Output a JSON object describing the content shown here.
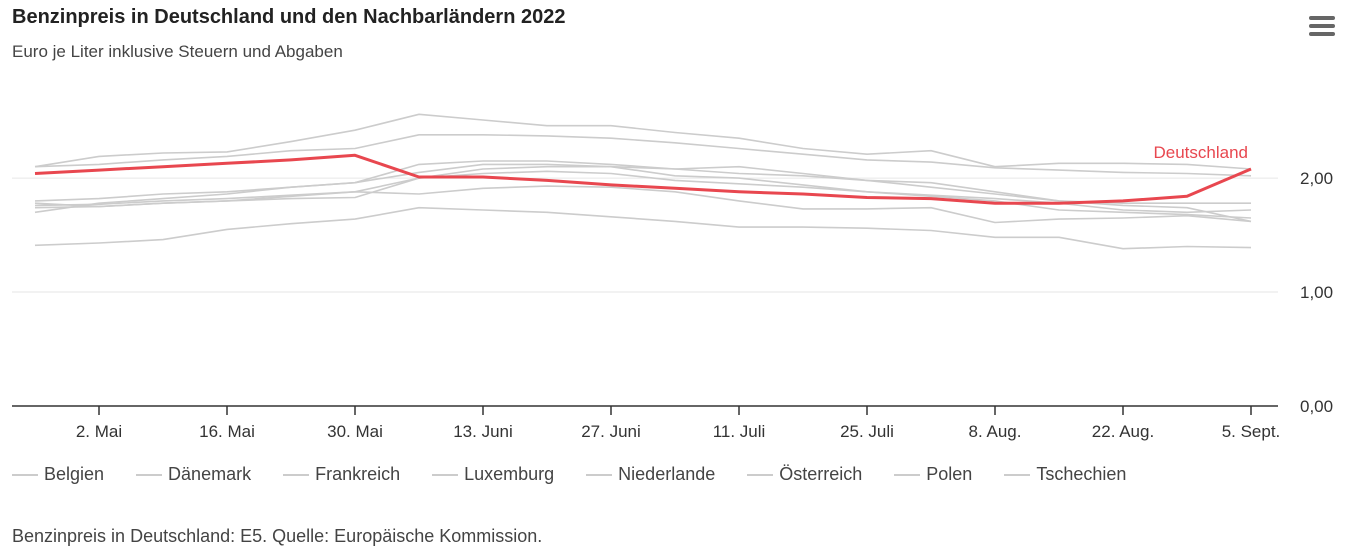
{
  "title": "Benzinpreis in Deutschland und den Nachbarländern 2022",
  "subtitle": "Euro je Liter inklusive Steuern und Abgaben",
  "footer": "Benzinpreis in Deutschland: E5. Quelle: Europäische Kommission.",
  "menu_icon": "hamburger-menu-icon",
  "colors": {
    "highlight": "#e8474f",
    "others": "#cccccc",
    "grid": "#e6e6e6",
    "axis": "#333333"
  },
  "chart_data": {
    "type": "line",
    "title": "Benzinpreis in Deutschland und den Nachbarländern 2022",
    "subtitle": "Euro je Liter inklusive Steuern und Abgaben",
    "x_tick_labels": [
      "2. Mai",
      "16. Mai",
      "30. Mai",
      "13. Juni",
      "27. Juni",
      "11. Juli",
      "25. Juli",
      "8. Aug.",
      "22. Aug.",
      "5. Sept."
    ],
    "y_tick_labels": [
      "0,00",
      "1,00",
      "2,00"
    ],
    "y_ticks": [
      0,
      1,
      2
    ],
    "ylim": [
      0,
      2.58
    ],
    "x": [
      "2022-04-25",
      "2022-05-02",
      "2022-05-09",
      "2022-05-16",
      "2022-05-23",
      "2022-05-30",
      "2022-06-06",
      "2022-06-13",
      "2022-06-20",
      "2022-06-27",
      "2022-07-04",
      "2022-07-11",
      "2022-07-18",
      "2022-07-25",
      "2022-08-01",
      "2022-08-08",
      "2022-08-15",
      "2022-08-22",
      "2022-08-29",
      "2022-09-05"
    ],
    "highlight_label": "Deutschland",
    "grid": true,
    "legend_position": "bottom-left",
    "series": [
      {
        "name": "Deutschland",
        "highlight": true,
        "values": [
          2.04,
          2.07,
          2.1,
          2.13,
          2.16,
          2.2,
          2.01,
          2.01,
          1.98,
          1.94,
          1.91,
          1.88,
          1.86,
          1.83,
          1.82,
          1.78,
          1.78,
          1.8,
          1.84,
          2.08
        ]
      },
      {
        "name": "Belgien",
        "values": [
          1.8,
          1.82,
          1.86,
          1.88,
          1.92,
          1.96,
          2.12,
          2.15,
          2.15,
          2.12,
          2.08,
          2.04,
          2.02,
          1.98,
          1.92,
          1.86,
          1.8,
          1.78,
          1.78,
          1.78
        ]
      },
      {
        "name": "Dänemark",
        "values": [
          2.1,
          2.19,
          2.22,
          2.23,
          2.32,
          2.42,
          2.56,
          2.51,
          2.46,
          2.46,
          2.4,
          2.35,
          2.26,
          2.21,
          2.24,
          2.1,
          2.13,
          2.13,
          2.12,
          2.08
        ]
      },
      {
        "name": "Frankreich",
        "values": [
          1.76,
          1.77,
          1.8,
          1.82,
          1.85,
          1.88,
          2.0,
          2.08,
          2.1,
          2.1,
          2.02,
          2.0,
          1.94,
          1.88,
          1.85,
          1.82,
          1.78,
          1.72,
          1.7,
          1.72
        ]
      },
      {
        "name": "Luxemburg",
        "values": [
          1.74,
          1.75,
          1.78,
          1.8,
          1.84,
          1.88,
          1.86,
          1.91,
          1.93,
          1.92,
          1.88,
          1.8,
          1.73,
          1.73,
          1.74,
          1.61,
          1.64,
          1.65,
          1.67,
          1.62
        ]
      },
      {
        "name": "Niederlande",
        "values": [
          2.1,
          2.12,
          2.16,
          2.19,
          2.24,
          2.26,
          2.38,
          2.38,
          2.37,
          2.35,
          2.31,
          2.26,
          2.21,
          2.16,
          2.14,
          2.09,
          2.07,
          2.05,
          2.04,
          2.02
        ]
      },
      {
        "name": "Österreich",
        "values": [
          1.7,
          1.78,
          1.82,
          1.86,
          1.92,
          1.96,
          2.05,
          2.12,
          2.12,
          2.1,
          2.08,
          2.1,
          2.04,
          1.98,
          1.96,
          1.88,
          1.8,
          1.76,
          1.74,
          1.62
        ]
      },
      {
        "name": "Polen",
        "values": [
          1.41,
          1.43,
          1.46,
          1.55,
          1.6,
          1.64,
          1.74,
          1.72,
          1.7,
          1.66,
          1.62,
          1.57,
          1.57,
          1.56,
          1.54,
          1.48,
          1.48,
          1.38,
          1.4,
          1.39
        ]
      },
      {
        "name": "Tschechien",
        "values": [
          1.78,
          1.75,
          1.78,
          1.8,
          1.82,
          1.83,
          2.0,
          2.04,
          2.06,
          2.04,
          1.98,
          1.95,
          1.92,
          1.88,
          1.84,
          1.8,
          1.72,
          1.7,
          1.68,
          1.65
        ]
      }
    ]
  },
  "legend": [
    "Belgien",
    "Dänemark",
    "Frankreich",
    "Luxemburg",
    "Niederlande",
    "Österreich",
    "Polen",
    "Tschechien"
  ]
}
